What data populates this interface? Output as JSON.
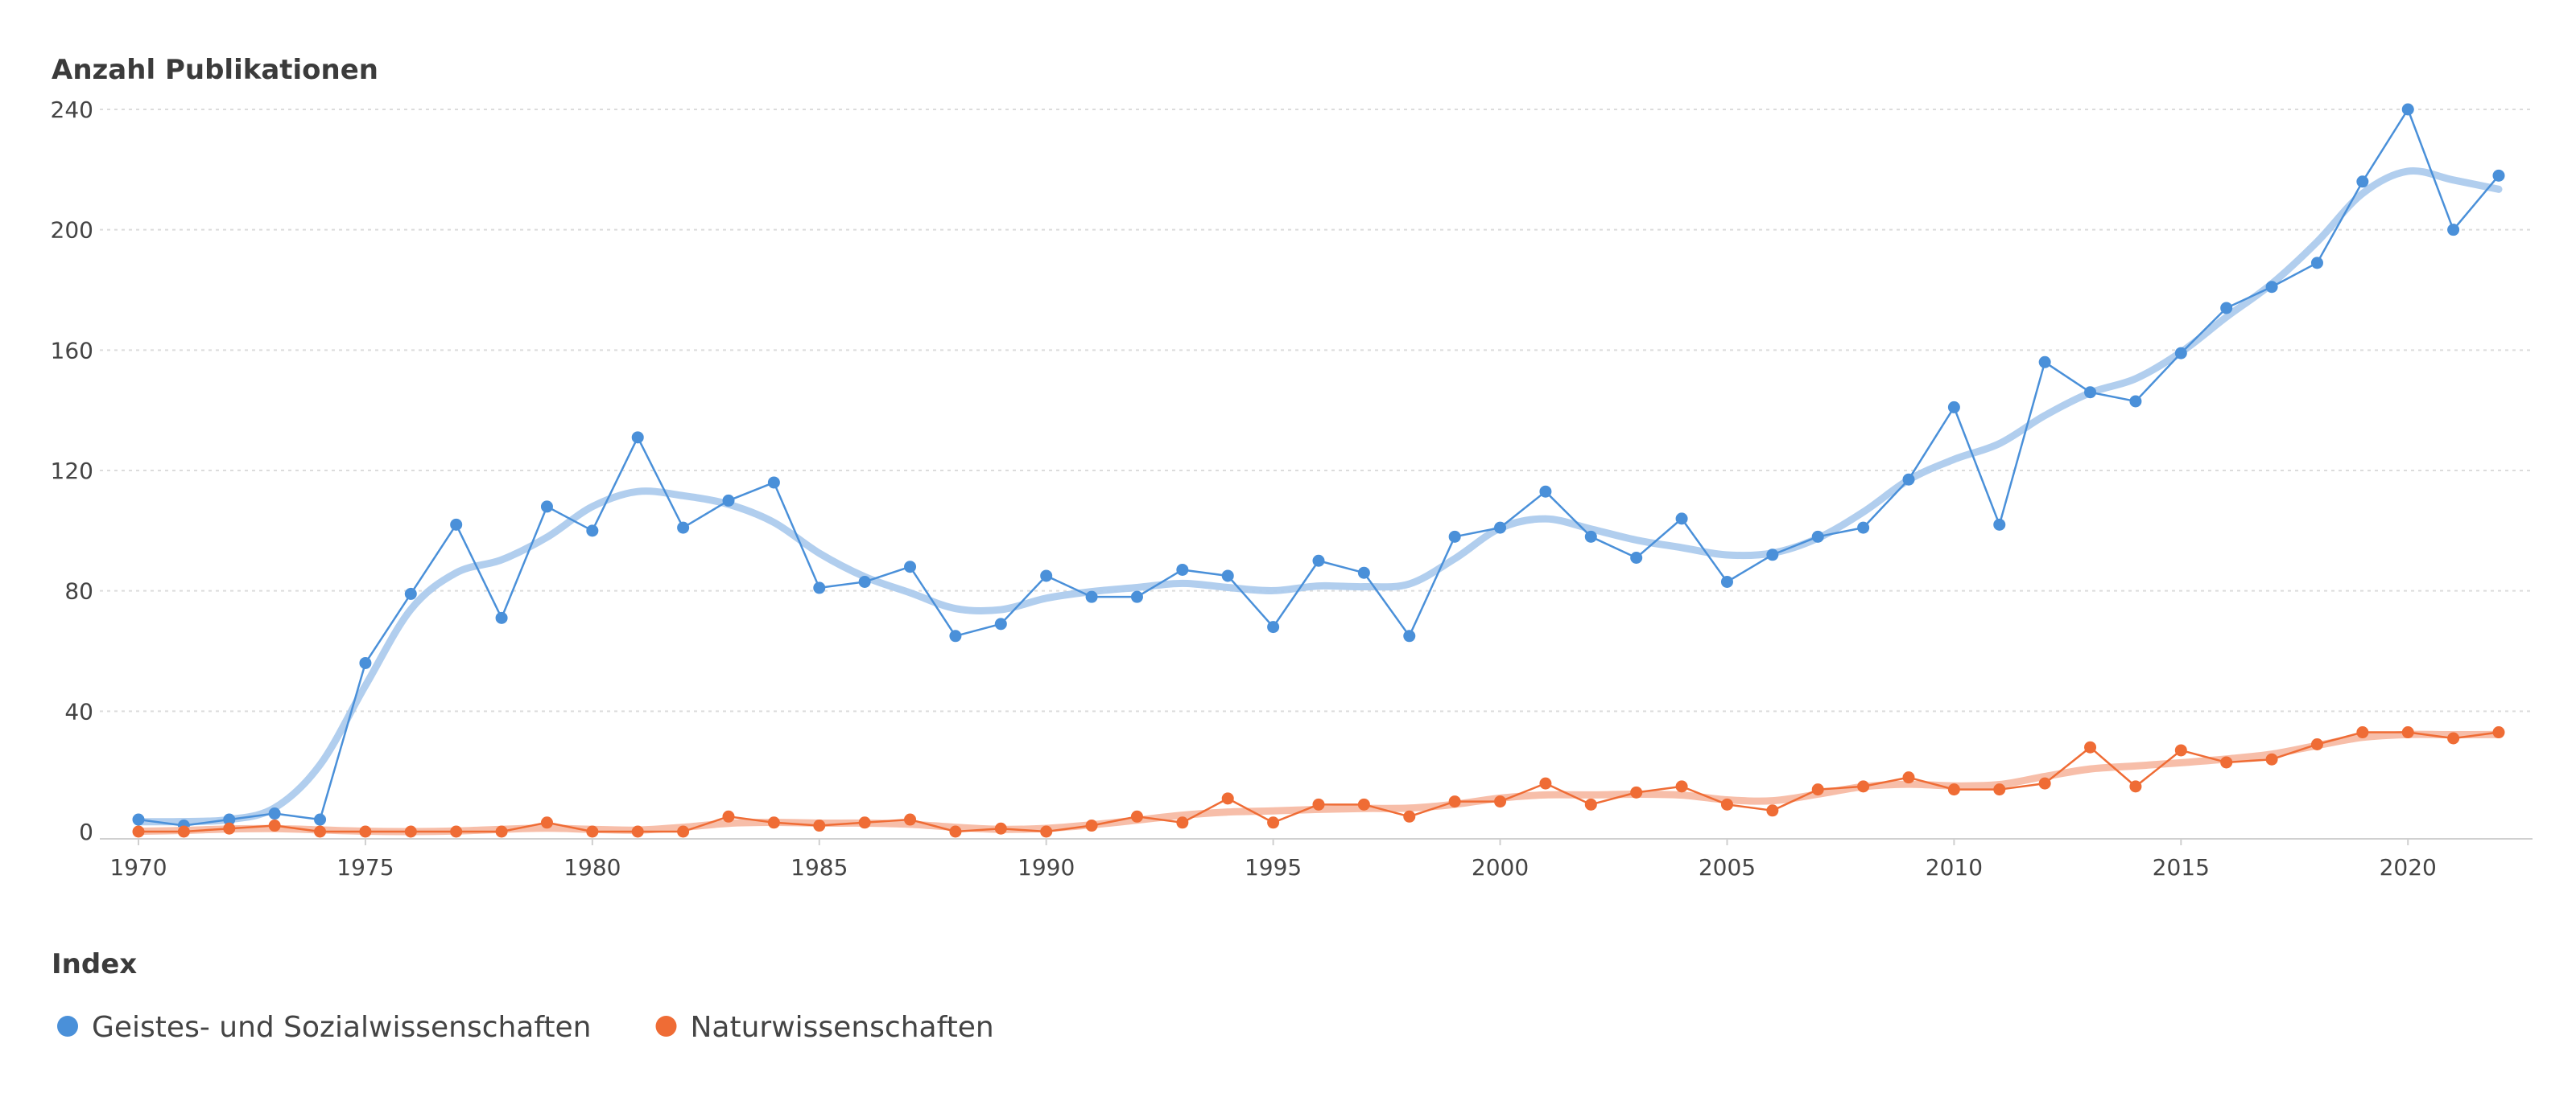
{
  "colors": {
    "series_1": "#4a90d9",
    "series_1_trend": "#a9c9ec",
    "series_2": "#ef6c35",
    "series_2_trend": "#f6b7a0",
    "grid": "#dcdcdc",
    "text": "#444444"
  },
  "chart_data": {
    "type": "line",
    "title": "Anzahl Publikationen",
    "xlabel": "",
    "ylabel": "Anzahl Publikationen",
    "xlim": [
      1970,
      2022
    ],
    "ylim": [
      0,
      240
    ],
    "x_ticks": [
      "1970",
      "1975",
      "1980",
      "1985",
      "1990",
      "1995",
      "2000",
      "2005",
      "2010",
      "2015",
      "2020"
    ],
    "y_ticks": [
      "0",
      "40",
      "80",
      "120",
      "160",
      "200",
      "240"
    ],
    "grid": true,
    "legend_title": "Index",
    "legend_position": "bottom-left",
    "x": [
      1970,
      1971,
      1972,
      1973,
      1974,
      1975,
      1976,
      1977,
      1978,
      1979,
      1980,
      1981,
      1982,
      1983,
      1984,
      1985,
      1986,
      1987,
      1988,
      1989,
      1990,
      1991,
      1992,
      1993,
      1994,
      1995,
      1996,
      1997,
      1998,
      1999,
      2000,
      2001,
      2002,
      2003,
      2004,
      2005,
      2006,
      2007,
      2008,
      2009,
      2010,
      2011,
      2012,
      2013,
      2014,
      2015,
      2016,
      2017,
      2018,
      2019,
      2020,
      2021,
      2022
    ],
    "series": [
      {
        "name": "Geistes- und Sozialwissenschaften",
        "values": [
          4,
          2,
          4,
          6,
          4,
          56,
          79,
          102,
          71,
          108,
          100,
          131,
          101,
          110,
          116,
          81,
          83,
          88,
          65,
          69,
          85,
          78,
          78,
          87,
          85,
          68,
          90,
          86,
          65,
          98,
          101,
          113,
          98,
          91,
          104,
          83,
          92,
          98,
          101,
          117,
          141,
          102,
          156,
          146,
          143,
          159,
          174,
          181,
          189,
          216,
          240,
          200,
          218
        ]
      },
      {
        "name": "Naturwissenschaften",
        "values": [
          0,
          0,
          1,
          2,
          0,
          0,
          0,
          0,
          0,
          3,
          0,
          0,
          0,
          5,
          3,
          2,
          3,
          4,
          0,
          1,
          0,
          2,
          5,
          3,
          11,
          3,
          9,
          9,
          5,
          10,
          10,
          16,
          9,
          13,
          15,
          9,
          7,
          14,
          15,
          18,
          14,
          14,
          16,
          28,
          15,
          27,
          23,
          24,
          29,
          33,
          33,
          31,
          33
        ]
      }
    ]
  }
}
